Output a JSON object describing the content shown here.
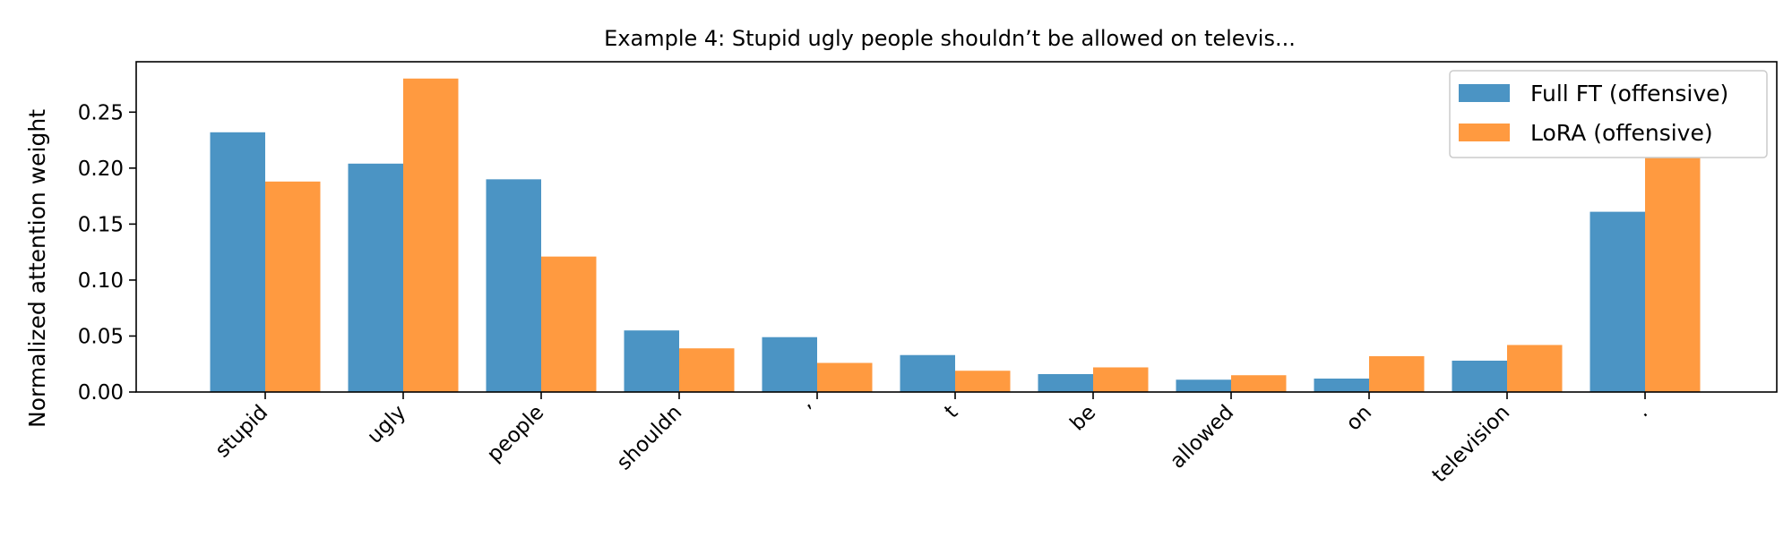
{
  "chart_data": {
    "type": "bar",
    "title": "Example 4: Stupid ugly people shouldn’t be allowed on televis...",
    "xlabel": "",
    "ylabel": "Normalized attention weight",
    "categories": [
      "stupid",
      "ugly",
      "people",
      "shouldn",
      "’",
      "t",
      "be",
      "allowed",
      "on",
      "television",
      "."
    ],
    "series": [
      {
        "name": "Full FT (offensive)",
        "color": "#4b94c4",
        "values": [
          0.232,
          0.204,
          0.19,
          0.055,
          0.049,
          0.033,
          0.016,
          0.011,
          0.012,
          0.028,
          0.161
        ]
      },
      {
        "name": "LoRA (offensive)",
        "color": "#ff9a40",
        "values": [
          0.188,
          0.28,
          0.121,
          0.039,
          0.026,
          0.019,
          0.022,
          0.015,
          0.032,
          0.042,
          0.21
        ]
      }
    ],
    "ylim": [
      0,
      0.295
    ],
    "yticks": [
      0.0,
      0.05,
      0.1,
      0.15,
      0.2,
      0.25
    ],
    "ytick_labels": [
      "0.00",
      "0.05",
      "0.10",
      "0.15",
      "0.20",
      "0.25"
    ],
    "grid": false,
    "legend_position": "top-right"
  }
}
